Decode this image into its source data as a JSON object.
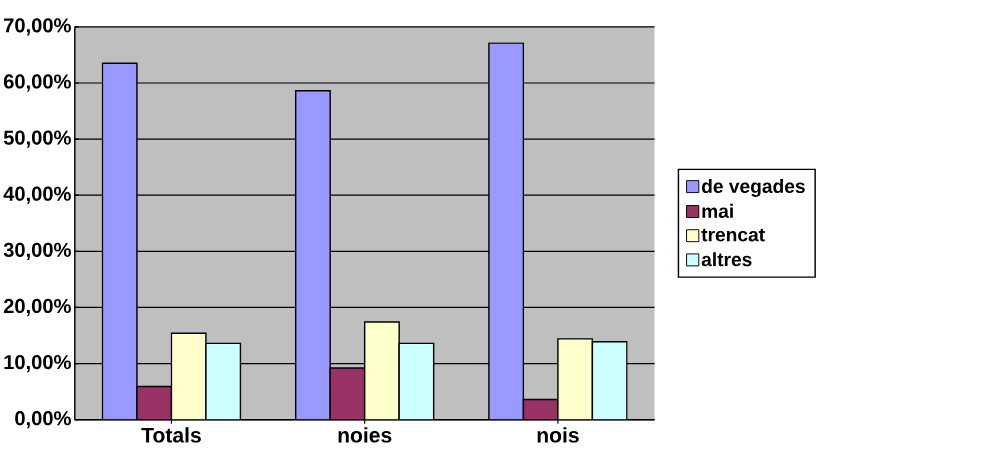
{
  "chart_data": {
    "type": "bar",
    "categories": [
      "Totals",
      "noies",
      "nois"
    ],
    "series": [
      {
        "name": "de vegades",
        "color": "#9999ff",
        "values": [
          63.5,
          58.6,
          67.1
        ]
      },
      {
        "name": "mai",
        "color": "#993366",
        "values": [
          5.9,
          9.2,
          3.6
        ]
      },
      {
        "name": "trencat",
        "color": "#ffffcc",
        "values": [
          15.4,
          17.4,
          14.4
        ]
      },
      {
        "name": "altres",
        "color": "#ccffff",
        "values": [
          13.6,
          13.6,
          13.9
        ]
      }
    ],
    "ylim": [
      0,
      70
    ],
    "yticks": [
      {
        "value": 0,
        "label": "0,00%"
      },
      {
        "value": 10,
        "label": "10,00%"
      },
      {
        "value": 20,
        "label": "20,00%"
      },
      {
        "value": 30,
        "label": "30,00%"
      },
      {
        "value": 40,
        "label": "40,00%"
      },
      {
        "value": 50,
        "label": "50,00%"
      },
      {
        "value": 60,
        "label": "60,00%"
      },
      {
        "value": 70,
        "label": "70,00%"
      }
    ],
    "grid": "y",
    "legend": "right"
  }
}
